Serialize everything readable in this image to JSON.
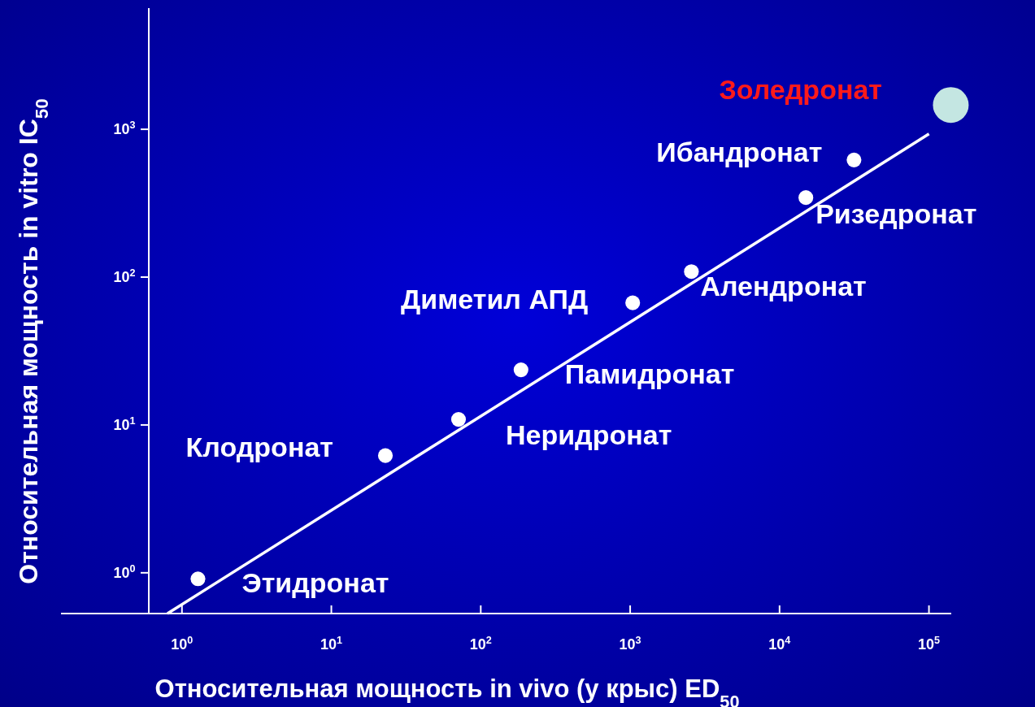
{
  "chart_data": {
    "type": "bubble",
    "xlabel": "Относительная мощность in vivo (у крыс) ED$_{50}$",
    "ylabel": "Относительная мощность in vitro IC$_{50}$",
    "log": "xy",
    "grid": false,
    "line_style": "solid",
    "xlim": [
      0.155,
      141000
    ],
    "ylim": [
      0.53,
      6600
    ],
    "xticks": [
      {
        "value": 1,
        "label": "10$^{0}$"
      },
      {
        "value": 10,
        "label": "10$^{1}$"
      },
      {
        "value": 100,
        "label": "10$^{2}$"
      },
      {
        "value": 1000,
        "label": "10$^{3}$"
      },
      {
        "value": 10000,
        "label": "10$^{4}$"
      },
      {
        "value": 100000,
        "label": "10$^{5}$"
      }
    ],
    "yticks": [
      {
        "value": 1,
        "label": "10$^{0}$"
      },
      {
        "value": 10,
        "label": "10$^{1}$"
      },
      {
        "value": 100,
        "label": "10$^{2}$"
      },
      {
        "value": 1000,
        "label": "10$^{3}$"
      }
    ],
    "series": [
      {
        "type": "line",
        "color": "#ffffff",
        "x": [
          0.8,
          100000
        ],
        "values": [
          0.53,
          930
        ]
      },
      {
        "x": [
          1.28,
          23,
          71,
          186,
          1040,
          2570,
          15000,
          31500,
          140000
        ],
        "values": [
          0.91,
          6.2,
          10.9,
          23.6,
          67,
          109,
          345,
          620,
          1460
        ],
        "sizes": [
          0.17,
          0.17,
          0.17,
          0.17,
          0.17,
          0.17,
          0.17,
          0.17,
          1
        ],
        "colors": [
          "#ffffff",
          "#ffffff",
          "#ffffff",
          "#ffffff",
          "#ffffff",
          "#ffffff",
          "#ffffff",
          "#ffffff",
          "#c4e6e2"
        ]
      }
    ],
    "annotations": [
      {
        "text": "Этидронат",
        "x": 1.28,
        "y": 0.91
      },
      {
        "text": "Клодронат",
        "x": 23,
        "y": 6.2
      },
      {
        "text": "Неридронат",
        "x": 71,
        "y": 10.9
      },
      {
        "text": "Памидронат",
        "x": 186,
        "y": 23.6
      },
      {
        "text": "Диметил АПД",
        "x": 1040,
        "y": 67
      },
      {
        "text": "Алендронат",
        "x": 2570,
        "y": 109
      },
      {
        "text": "Ризедронат",
        "x": 15000,
        "y": 345
      },
      {
        "text": "Ибандронат",
        "x": 31500,
        "y": 620
      },
      "Золедронат"
    ]
  }
}
